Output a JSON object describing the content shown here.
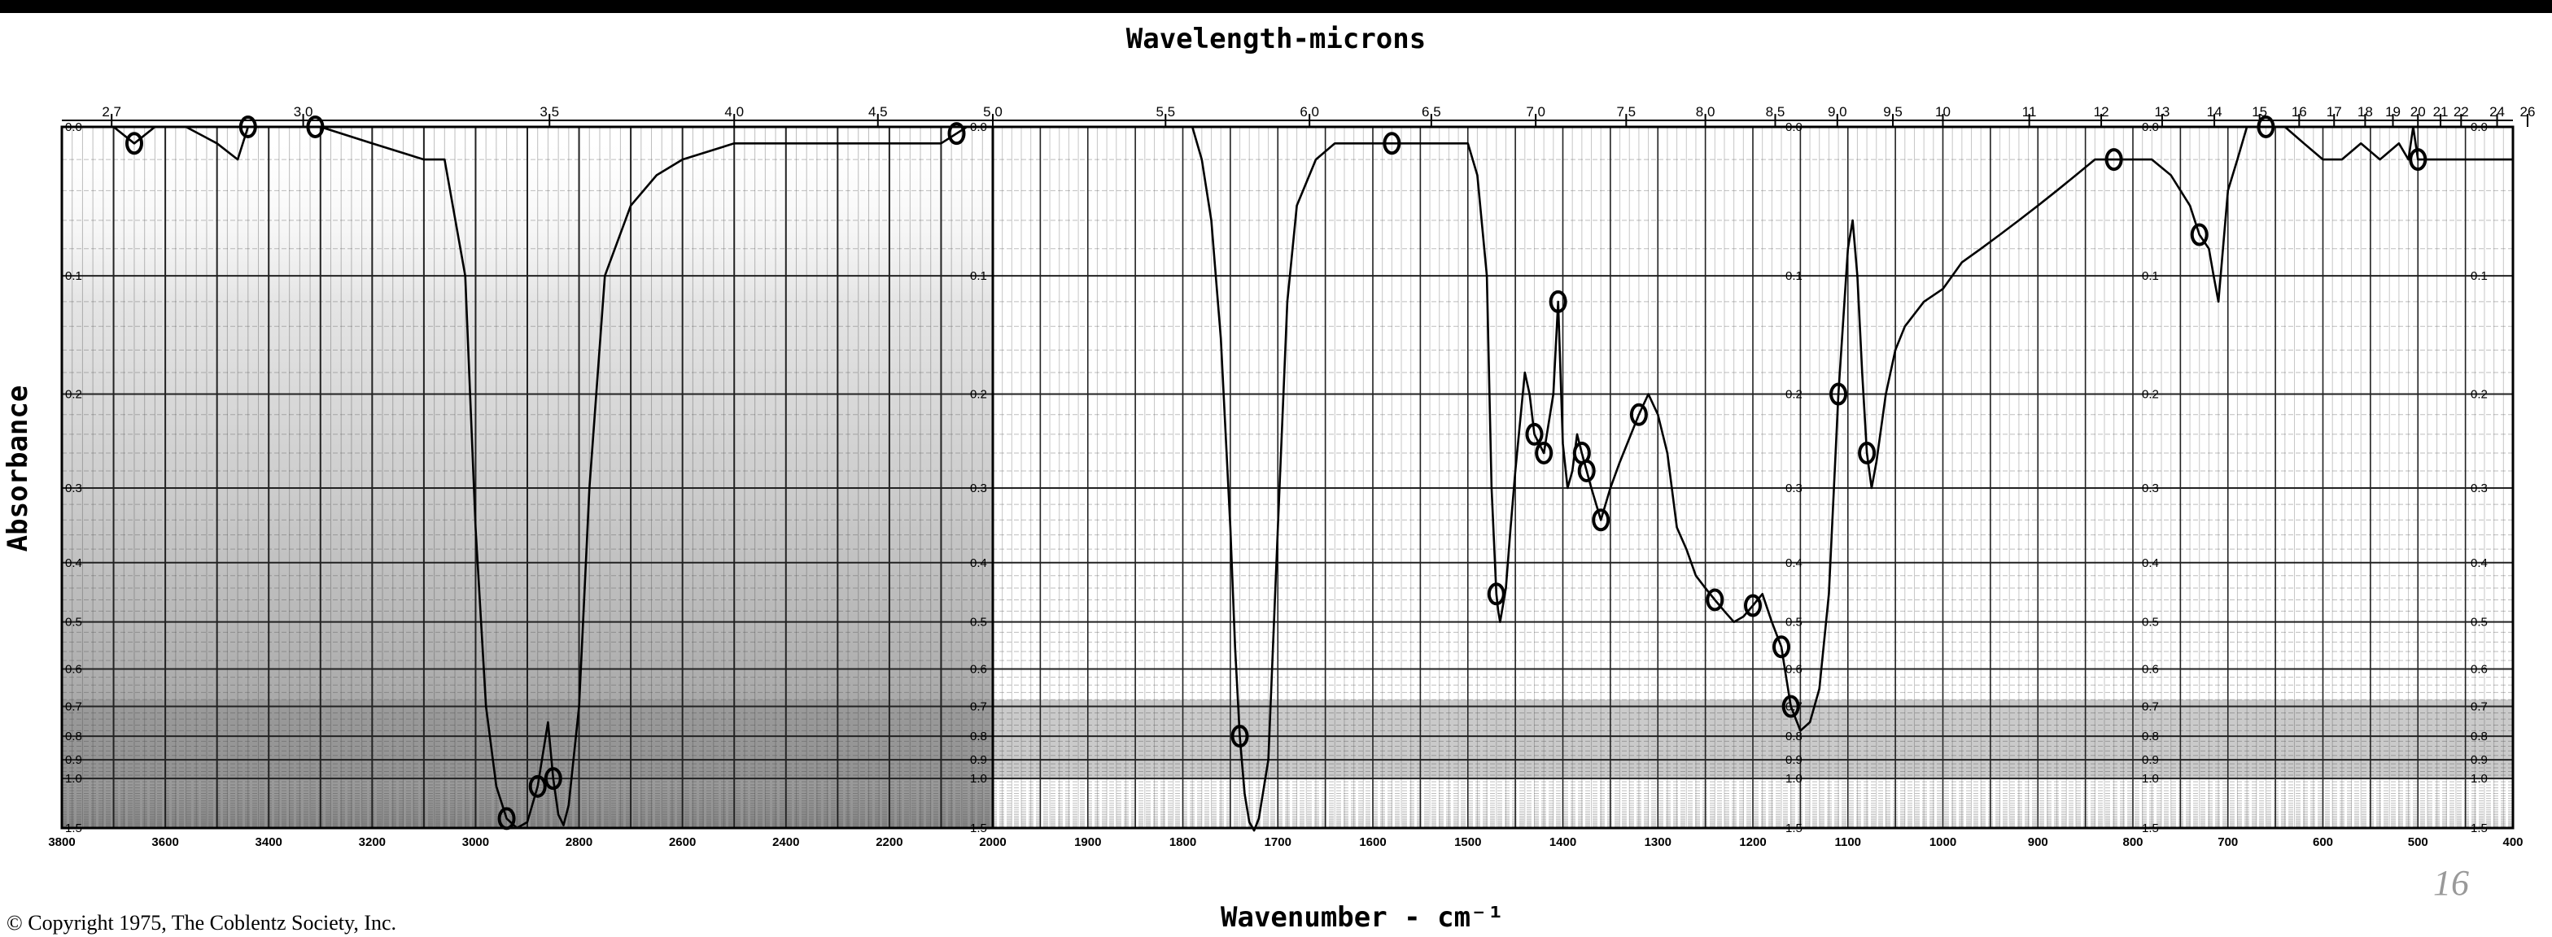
{
  "chart_data": {
    "type": "line",
    "title": "Wavelength-microns",
    "xlabel": "Wavenumber - cm⁻¹",
    "ylabel": "Absorbance",
    "xlim": [
      3800,
      400
    ],
    "ylim": [
      0.0,
      1.5
    ],
    "grid": true,
    "top_axis_ticks": [
      "2.7",
      "3.0",
      "3.5",
      "4.0",
      "4.5",
      "5.0",
      "5.5",
      "6.0",
      "6.5",
      "7.0",
      "7.5",
      "8.0",
      "8.5",
      "9.0",
      "9.5",
      "10",
      "11",
      "12",
      "13",
      "14",
      "15",
      "16",
      "17",
      "18",
      "19",
      "20",
      "21",
      "22",
      "24",
      "26"
    ],
    "bottom_axis_ticks": [
      "3800",
      "3600",
      "3400",
      "3200",
      "3000",
      "2800",
      "2600",
      "2400",
      "2200",
      "2000",
      "1900",
      "1800",
      "1700",
      "1600",
      "1500",
      "1400",
      "1300",
      "1200",
      "1100",
      "1000",
      "900",
      "800",
      "700",
      "600",
      "500",
      "400"
    ],
    "absorbance_ticks": [
      "0.0",
      "0.1",
      "0.2",
      "0.3",
      "0.4",
      "0.5",
      "0.6",
      "0.7",
      "0.8",
      "0.9",
      "1.0",
      "1.5"
    ],
    "series": [
      {
        "x": [
          3800,
          3700,
          3660,
          3620,
          3560,
          3500,
          3460,
          3440,
          3400,
          3300,
          3200,
          3100,
          3060,
          3020,
          3000,
          2980,
          2960,
          2940,
          2920,
          2900,
          2880,
          2860,
          2850,
          2840,
          2830,
          2820,
          2800,
          2780,
          2750,
          2700,
          2650,
          2600,
          2500,
          2400,
          2300,
          2200,
          2100,
          2050,
          2000,
          1900,
          1850,
          1820,
          1790,
          1780,
          1770,
          1760,
          1750,
          1745,
          1740,
          1735,
          1730,
          1725,
          1720,
          1710,
          1700,
          1690,
          1680,
          1660,
          1640,
          1620,
          1600,
          1580,
          1550,
          1500,
          1490,
          1480,
          1475,
          1470,
          1468,
          1466,
          1460,
          1455,
          1450,
          1440,
          1435,
          1430,
          1420,
          1410,
          1405,
          1400,
          1395,
          1390,
          1385,
          1380,
          1370,
          1360,
          1350,
          1340,
          1320,
          1310,
          1300,
          1290,
          1280,
          1270,
          1260,
          1250,
          1240,
          1230,
          1220,
          1210,
          1200,
          1190,
          1180,
          1170,
          1165,
          1160,
          1150,
          1140,
          1130,
          1120,
          1110,
          1100,
          1095,
          1090,
          1085,
          1080,
          1075,
          1070,
          1060,
          1050,
          1040,
          1020,
          1000,
          980,
          960,
          940,
          920,
          900,
          880,
          860,
          840,
          830,
          820,
          800,
          780,
          760,
          740,
          730,
          720,
          715,
          710,
          700,
          690,
          680,
          670,
          660,
          640,
          620,
          600,
          580,
          560,
          540,
          520,
          510,
          505,
          500,
          480,
          460,
          440,
          420,
          400
        ],
        "y": [
          0.0,
          0.0,
          0.01,
          0.0,
          0.0,
          0.01,
          0.02,
          0.0,
          0.0,
          0.0,
          0.01,
          0.02,
          0.02,
          0.1,
          0.35,
          0.7,
          1.05,
          1.35,
          1.5,
          1.4,
          1.05,
          0.75,
          1.0,
          1.3,
          1.45,
          1.2,
          0.7,
          0.3,
          0.1,
          0.05,
          0.03,
          0.02,
          0.01,
          0.01,
          0.01,
          0.01,
          0.01,
          0.0,
          0.0,
          0.0,
          0.0,
          0.0,
          0.0,
          0.02,
          0.06,
          0.15,
          0.35,
          0.55,
          0.8,
          1.1,
          1.4,
          1.55,
          1.35,
          0.9,
          0.35,
          0.12,
          0.05,
          0.02,
          0.01,
          0.01,
          0.01,
          0.01,
          0.01,
          0.01,
          0.03,
          0.1,
          0.3,
          0.45,
          0.48,
          0.5,
          0.44,
          0.35,
          0.28,
          0.18,
          0.2,
          0.24,
          0.26,
          0.2,
          0.12,
          0.25,
          0.3,
          0.28,
          0.24,
          0.26,
          0.3,
          0.34,
          0.3,
          0.27,
          0.22,
          0.2,
          0.22,
          0.26,
          0.35,
          0.38,
          0.42,
          0.44,
          0.46,
          0.48,
          0.5,
          0.49,
          0.47,
          0.45,
          0.5,
          0.55,
          0.62,
          0.7,
          0.78,
          0.75,
          0.65,
          0.45,
          0.2,
          0.08,
          0.06,
          0.1,
          0.18,
          0.26,
          0.3,
          0.27,
          0.2,
          0.16,
          0.14,
          0.12,
          0.11,
          0.09,
          0.08,
          0.07,
          0.06,
          0.05,
          0.04,
          0.03,
          0.02,
          0.02,
          0.02,
          0.02,
          0.02,
          0.03,
          0.05,
          0.07,
          0.08,
          0.1,
          0.12,
          0.04,
          0.02,
          0.0,
          0.0,
          0.0,
          0.0,
          0.01,
          0.02,
          0.02,
          0.01,
          0.02,
          0.01,
          0.02,
          0.0,
          0.02,
          0.02,
          0.02,
          0.02,
          0.02,
          0.02
        ]
      }
    ],
    "marked_peaks_cm-1": [
      3660,
      3440,
      3310,
      2940,
      2880,
      2850,
      2070,
      1740,
      1580,
      1470,
      1430,
      1420,
      1405,
      1380,
      1375,
      1360,
      1320,
      1240,
      1200,
      1170,
      1160,
      1110,
      1080,
      820,
      730,
      660,
      500
    ]
  },
  "annotations": {
    "copyright": "© Copyright 1975, The Coblentz Society, Inc.",
    "handwritten_number": "16"
  },
  "colors": {
    "ink": "#000000",
    "grid_dark": "#7a7a7a",
    "shade": "#b9b9b9"
  }
}
